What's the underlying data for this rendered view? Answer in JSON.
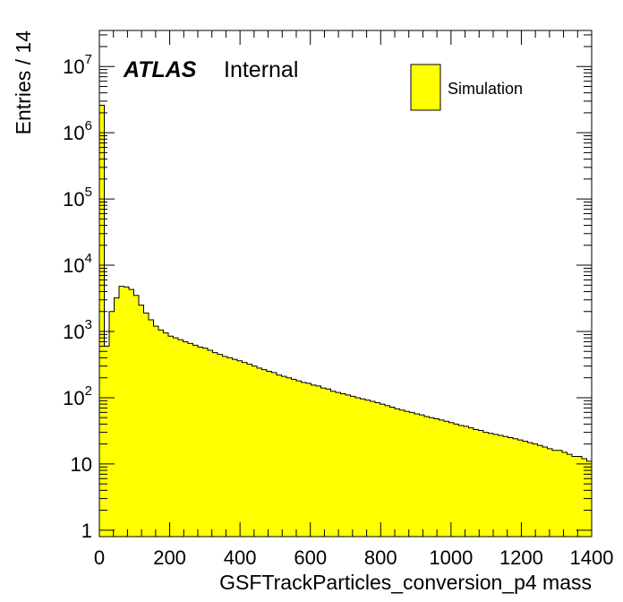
{
  "chart_data": {
    "type": "histogram",
    "xlabel": "GSFTrackParticles_conversion_p4 mass",
    "ylabel": "Entries / 14",
    "xlim": [
      0,
      1400
    ],
    "ylim": [
      0.8,
      35000000
    ],
    "log_y": true,
    "bin_width": 14,
    "legend_placement": "top-right",
    "experiment_label": "ATLAS",
    "status_label": "Internal",
    "x_ticks": [
      0,
      200,
      400,
      600,
      800,
      1000,
      1200,
      1400
    ],
    "x_tick_labels": [
      "0",
      "200",
      "400",
      "600",
      "800",
      "1000",
      "1200",
      "1400"
    ],
    "y_ticks": [
      1,
      10,
      100,
      1000,
      10000,
      100000,
      1000000,
      10000000
    ],
    "y_tick_labels": [
      {
        "base": "1",
        "exp": ""
      },
      {
        "base": "10",
        "exp": ""
      },
      {
        "base": "10",
        "exp": "2"
      },
      {
        "base": "10",
        "exp": "3"
      },
      {
        "base": "10",
        "exp": "4"
      },
      {
        "base": "10",
        "exp": "5"
      },
      {
        "base": "10",
        "exp": "6"
      },
      {
        "base": "10",
        "exp": "7"
      }
    ],
    "series": [
      {
        "name": "Simulation",
        "color": "#ffff00",
        "edge_color": "#000000",
        "bin_edges_start": 0,
        "values": [
          2600000,
          600,
          2000,
          3200,
          4800,
          4700,
          4300,
          3500,
          2500,
          1900,
          1500,
          1200,
          1050,
          950,
          850,
          800,
          750,
          700,
          660,
          620,
          580,
          560,
          520,
          480,
          450,
          420,
          400,
          380,
          360,
          340,
          320,
          300,
          280,
          265,
          250,
          240,
          220,
          210,
          200,
          190,
          180,
          170,
          165,
          155,
          150,
          140,
          135,
          125,
          120,
          115,
          110,
          105,
          100,
          96,
          92,
          88,
          84,
          80,
          76,
          72,
          68,
          65,
          62,
          60,
          57,
          55,
          52,
          50,
          48,
          46,
          44,
          42,
          40,
          38,
          37,
          35,
          33,
          32,
          30,
          29,
          28,
          27,
          26,
          25,
          24,
          23,
          22,
          21,
          20,
          19,
          18,
          17,
          16,
          16,
          15,
          14,
          13,
          13,
          12,
          11
        ]
      }
    ]
  }
}
